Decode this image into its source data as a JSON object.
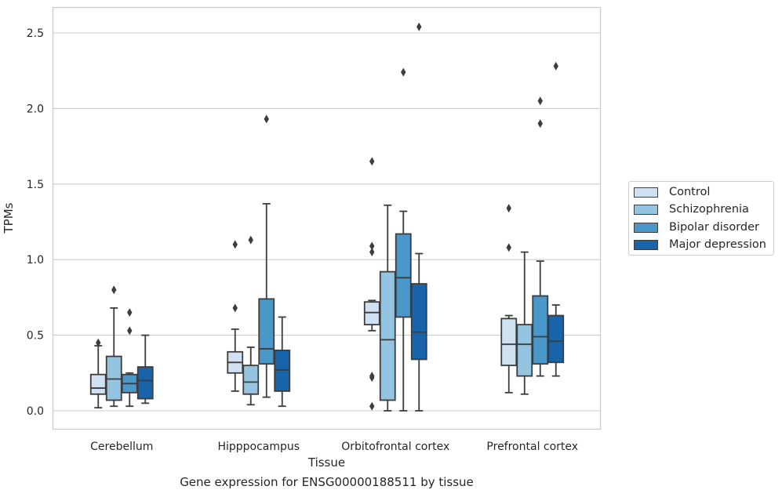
{
  "chart_data": {
    "type": "box",
    "xlabel": "Tissue",
    "ylabel": "TPMs",
    "ylim": [
      -0.12,
      2.65
    ],
    "yticks": [
      "0.0",
      "0.5",
      "1.0",
      "1.5",
      "2.0",
      "2.5"
    ],
    "grid": true,
    "legend_position": "right",
    "categories": [
      "Cerebellum",
      "Hipppocampus",
      "Orbitofrontal cortex",
      "Prefrontal cortex"
    ],
    "series": [
      {
        "name": "Control",
        "color": "#d0e1f2",
        "boxes": [
          {
            "whislo": 0.02,
            "q1": 0.11,
            "med": 0.15,
            "q3": 0.24,
            "whishi": 0.43,
            "fliers": [
              0.45
            ]
          },
          {
            "whislo": 0.13,
            "q1": 0.25,
            "med": 0.32,
            "q3": 0.39,
            "whishi": 0.54,
            "fliers": [
              0.68,
              1.1
            ]
          },
          {
            "whislo": 0.53,
            "q1": 0.57,
            "med": 0.65,
            "q3": 0.72,
            "whishi": 0.73,
            "fliers": [
              0.03,
              0.22,
              0.23,
              1.05,
              1.09,
              1.65
            ]
          },
          {
            "whislo": 0.12,
            "q1": 0.3,
            "med": 0.44,
            "q3": 0.61,
            "whishi": 0.63,
            "fliers": [
              1.08,
              1.34
            ]
          }
        ]
      },
      {
        "name": "Schizophrenia",
        "color": "#94c4df",
        "boxes": [
          {
            "whislo": 0.03,
            "q1": 0.07,
            "med": 0.21,
            "q3": 0.36,
            "whishi": 0.68,
            "fliers": [
              0.8
            ]
          },
          {
            "whislo": 0.04,
            "q1": 0.11,
            "med": 0.19,
            "q3": 0.3,
            "whishi": 0.42,
            "fliers": [
              1.13
            ]
          },
          {
            "whislo": 0.0,
            "q1": 0.07,
            "med": 0.47,
            "q3": 0.92,
            "whishi": 1.36,
            "fliers": []
          },
          {
            "whislo": 0.11,
            "q1": 0.23,
            "med": 0.44,
            "q3": 0.57,
            "whishi": 1.05,
            "fliers": []
          }
        ]
      },
      {
        "name": "Bipolar disorder",
        "color": "#4a98c9",
        "boxes": [
          {
            "whislo": 0.03,
            "q1": 0.12,
            "med": 0.18,
            "q3": 0.24,
            "whishi": 0.25,
            "fliers": [
              0.53,
              0.65
            ]
          },
          {
            "whislo": 0.09,
            "q1": 0.31,
            "med": 0.41,
            "q3": 0.74,
            "whishi": 1.37,
            "fliers": [
              1.93
            ]
          },
          {
            "whislo": 0.0,
            "q1": 0.62,
            "med": 0.88,
            "q3": 1.17,
            "whishi": 1.32,
            "fliers": [
              2.24
            ]
          },
          {
            "whislo": 0.23,
            "q1": 0.31,
            "med": 0.49,
            "q3": 0.76,
            "whishi": 0.99,
            "fliers": [
              1.9,
              2.05
            ]
          }
        ]
      },
      {
        "name": "Major depression",
        "color": "#1764ab",
        "boxes": [
          {
            "whislo": 0.05,
            "q1": 0.08,
            "med": 0.2,
            "q3": 0.29,
            "whishi": 0.5,
            "fliers": []
          },
          {
            "whislo": 0.03,
            "q1": 0.13,
            "med": 0.27,
            "q3": 0.4,
            "whishi": 0.62,
            "fliers": []
          },
          {
            "whislo": 0.0,
            "q1": 0.34,
            "med": 0.52,
            "q3": 0.84,
            "whishi": 1.04,
            "fliers": [
              2.54
            ]
          },
          {
            "whislo": 0.23,
            "q1": 0.32,
            "med": 0.46,
            "q3": 0.63,
            "whishi": 0.7,
            "fliers": [
              2.28
            ]
          }
        ]
      }
    ]
  },
  "caption": "Gene expression for ENSG00000188511 by tissue"
}
